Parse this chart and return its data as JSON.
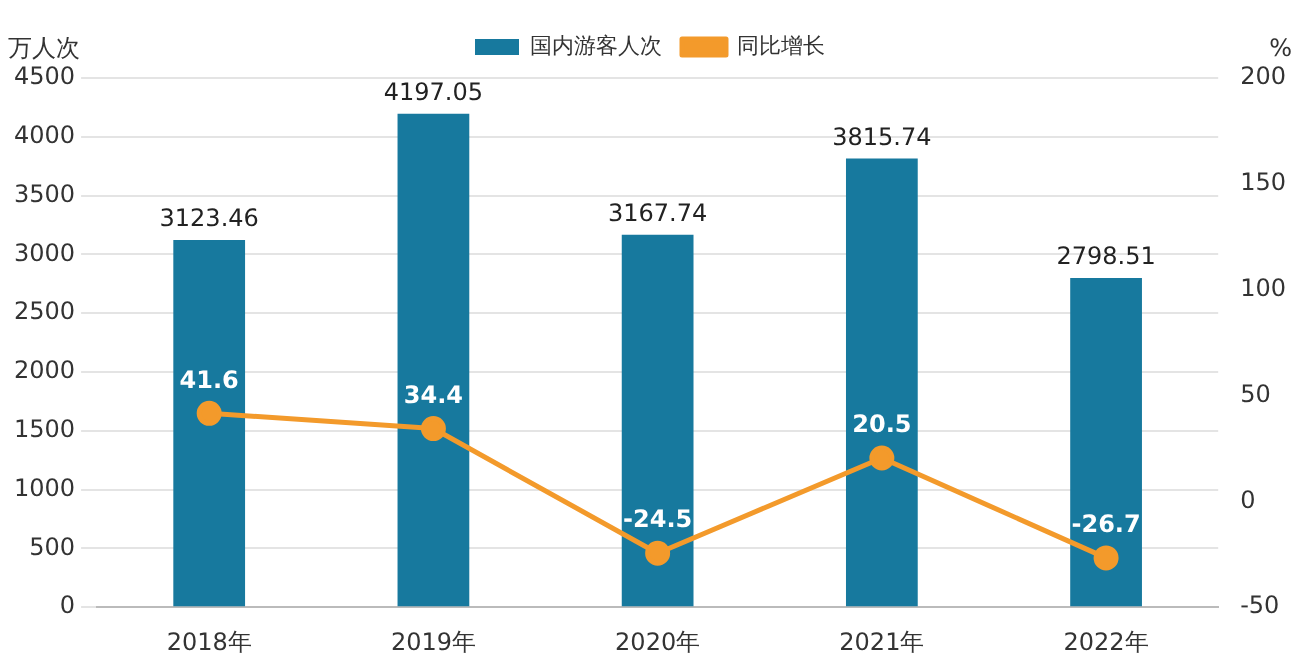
{
  "chart_data": {
    "type": "bar",
    "categories": [
      "2018年",
      "2019年",
      "2020年",
      "2021年",
      "2022年"
    ],
    "ylabel": "万人次",
    "y2label": "%",
    "series": [
      {
        "name": "国内游客人次",
        "color": "#17799e",
        "values": [
          3123.46,
          4197.05,
          3167.74,
          3815.74,
          2798.51
        ]
      },
      {
        "name": "同比增长",
        "type": "line",
        "axis": "y2",
        "color": "#f39a2b",
        "values": [
          41.6,
          34.4,
          -24.5,
          20.5,
          -26.7
        ]
      }
    ],
    "ylim": [
      0,
      4500
    ],
    "yticks": [
      0,
      500,
      1000,
      1500,
      2000,
      2500,
      3000,
      3500,
      4000,
      4500
    ],
    "y2lim": [
      -50,
      200
    ],
    "y2ticks": [
      -50,
      0,
      50,
      100,
      150,
      200
    ],
    "grid": "y",
    "legend": "top",
    "marker": "circle",
    "data_labels": true
  }
}
